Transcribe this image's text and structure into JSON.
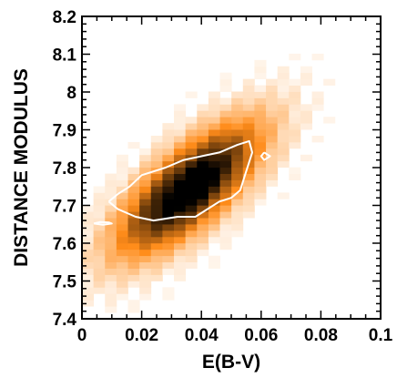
{
  "chart_data": {
    "type": "heatmap",
    "title": "",
    "xlabel": "E(B-V)",
    "ylabel": "DISTANCE MODULUS",
    "xlim": [
      0,
      0.1
    ],
    "ylim": [
      7.4,
      8.2
    ],
    "x_ticks": [
      0,
      0.02,
      0.04,
      0.06,
      0.08,
      0.1
    ],
    "x_tick_labels": [
      "0",
      "0.02",
      "0.04",
      "0.06",
      "0.08",
      "0.1"
    ],
    "y_ticks": [
      7.4,
      7.5,
      7.6,
      7.7,
      7.8,
      7.9,
      8.0,
      8.1,
      8.2
    ],
    "y_tick_labels": [
      "7.4",
      "7.5",
      "7.6",
      "7.7",
      "7.8",
      "7.9",
      "8",
      "8.1",
      "8.2"
    ],
    "grid": false,
    "colormap": {
      "low": "#ffffff",
      "mid": "#ff8c1a",
      "high": "#000000"
    },
    "density_model": {
      "description": "posterior density, correlated ridge",
      "center": [
        0.036,
        7.745
      ],
      "slope": 7.0,
      "sigma_along": 0.05,
      "sigma_across": 0.075,
      "cell_size": [
        0.00385,
        0.0167
      ]
    },
    "contours": [
      {
        "name": "",
        "color": "#ffffff",
        "points": [
          [
            0.009,
            7.71
          ],
          [
            0.012,
            7.73
          ],
          [
            0.016,
            7.75
          ],
          [
            0.02,
            7.78
          ],
          [
            0.028,
            7.8
          ],
          [
            0.034,
            7.82
          ],
          [
            0.04,
            7.83
          ],
          [
            0.046,
            7.84
          ],
          [
            0.052,
            7.86
          ],
          [
            0.056,
            7.87
          ],
          [
            0.057,
            7.84
          ],
          [
            0.055,
            7.79
          ],
          [
            0.053,
            7.74
          ],
          [
            0.05,
            7.72
          ],
          [
            0.046,
            7.71
          ],
          [
            0.042,
            7.69
          ],
          [
            0.038,
            7.67
          ],
          [
            0.032,
            7.67
          ],
          [
            0.024,
            7.66
          ],
          [
            0.018,
            7.67
          ],
          [
            0.012,
            7.69
          ],
          [
            0.009,
            7.71
          ]
        ]
      },
      {
        "name": "",
        "color": "#ffffff",
        "points": [
          [
            0.061,
            7.84
          ],
          [
            0.063,
            7.83
          ],
          [
            0.061,
            7.82
          ],
          [
            0.06,
            7.83
          ],
          [
            0.061,
            7.84
          ]
        ]
      },
      {
        "name": "",
        "color": "#ffffff",
        "points": [
          [
            0.004,
            7.652
          ],
          [
            0.006,
            7.656
          ],
          [
            0.009,
            7.655
          ],
          [
            0.01,
            7.652
          ],
          [
            0.007,
            7.649
          ],
          [
            0.004,
            7.652
          ]
        ]
      }
    ]
  }
}
